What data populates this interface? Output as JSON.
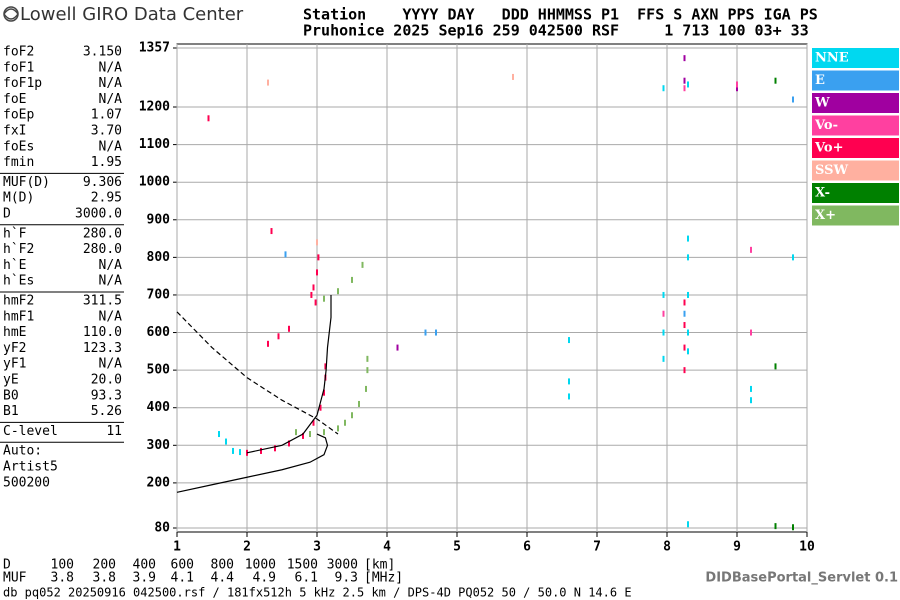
{
  "header": {
    "brand": "Lowell GIRO Data Center",
    "line1": "Station    YYYY DAY   DDD HHMMSS P1  FFS S AXN PPS IGA PS",
    "line2": "Pruhonice 2025 Sep16 259 042500 RSF     1 713 100 03+ 33"
  },
  "params": [
    [
      [
        "foF2",
        "3.150"
      ],
      [
        "foF1",
        "N/A"
      ],
      [
        "foF1p",
        "N/A"
      ],
      [
        "foE",
        "N/A"
      ],
      [
        "foEp",
        "1.07"
      ],
      [
        "fxI",
        "3.70"
      ],
      [
        "foEs",
        "N/A"
      ],
      [
        "fmin",
        "1.95"
      ]
    ],
    [
      [
        "MUF(D)",
        "9.306"
      ],
      [
        "M(D)",
        "2.95"
      ],
      [
        "D",
        "3000.0"
      ]
    ],
    [
      [
        "h`F",
        "280.0"
      ],
      [
        "h`F2",
        "280.0"
      ],
      [
        "h`E",
        "N/A"
      ],
      [
        "h`Es",
        "N/A"
      ]
    ],
    [
      [
        "hmF2",
        "311.5"
      ],
      [
        "hmF1",
        "N/A"
      ],
      [
        "hmE",
        "110.0"
      ],
      [
        "yF2",
        "123.3"
      ],
      [
        "yF1",
        "N/A"
      ],
      [
        "yE",
        "20.0"
      ],
      [
        "B0",
        "93.3"
      ],
      [
        "B1",
        "5.26"
      ]
    ],
    [
      [
        "C-level",
        "11"
      ]
    ],
    [
      [
        "Auto:",
        ""
      ],
      [
        "Artist5",
        ""
      ],
      [
        "500200",
        ""
      ]
    ]
  ],
  "muf_table": {
    "d_label": "D",
    "d_values": [
      "100",
      "200",
      "400",
      "600",
      "800",
      "1000",
      "1500",
      "3000"
    ],
    "d_unit": "[km]",
    "muf_label": "MUF",
    "muf_values": [
      "3.8",
      "3.8",
      "3.9",
      "4.1",
      "4.4",
      "4.9",
      "6.1",
      "9.3"
    ],
    "muf_unit": "[MHz]"
  },
  "footer": {
    "left": "db pq052 20250916 042500.rsf / 181fx512h 5 kHz 2.5 km / DPS-4D PQ052 50 / 50.0 N 14.6 E",
    "right": "DIDBasePortal_Servlet 0.1"
  },
  "chart_data": {
    "type": "scatter",
    "xlim": [
      1,
      10
    ],
    "ylim": [
      80,
      1357
    ],
    "xticks": [
      1,
      2,
      3,
      4,
      5,
      6,
      7,
      8,
      9,
      10
    ],
    "yticks": [
      80,
      200,
      300,
      400,
      500,
      600,
      700,
      800,
      900,
      1000,
      1100,
      1200,
      1357
    ],
    "grid": true,
    "legend": "right",
    "series": [
      {
        "name": "NNE",
        "color": "#00d8f0",
        "x": [
          1.6,
          1.7,
          1.8,
          1.9,
          6.6,
          6.6,
          6.6,
          7.95,
          7.95,
          7.95,
          8.3,
          8.3,
          8.3,
          8.3,
          8.3,
          7.95,
          8.3,
          8.3,
          9.2,
          9.2,
          9.8
        ],
        "y": [
          330,
          310,
          285,
          282,
          580,
          470,
          430,
          530,
          600,
          700,
          600,
          700,
          800,
          850,
          550,
          1250,
          1260,
          90,
          420,
          450,
          800
        ]
      },
      {
        "name": "E",
        "color": "#3aa0f0",
        "x": [
          4.55,
          4.7,
          8.25,
          9.8,
          2.55
        ],
        "y": [
          600,
          600,
          650,
          1220,
          808
        ]
      },
      {
        "name": "W",
        "color": "#a000a0",
        "x": [
          8.25,
          4.15,
          9.0,
          8.25
        ],
        "y": [
          1330,
          560,
          1250,
          1270
        ]
      },
      {
        "name": "Vo-",
        "color": "#ff40a0",
        "x": [
          7.95,
          9.2,
          9.2,
          9.0,
          8.25
        ],
        "y": [
          650,
          600,
          820,
          1260,
          1250
        ]
      },
      {
        "name": "Vo+",
        "color": "#ff0050",
        "x": [
          2.0,
          2.2,
          2.4,
          2.6,
          2.8,
          2.95,
          3.05,
          3.1,
          3.12,
          3.12,
          2.92,
          2.95,
          3.0,
          3.02,
          2.98,
          2.3,
          2.45,
          2.6,
          8.25,
          8.25,
          8.25,
          8.25,
          1.45,
          2.35
        ],
        "y": [
          280,
          285,
          292,
          305,
          325,
          360,
          400,
          440,
          480,
          510,
          700,
          720,
          760,
          800,
          680,
          570,
          590,
          610,
          500,
          560,
          620,
          680,
          1170,
          870
        ]
      },
      {
        "name": "SSW",
        "color": "#ffb0a0",
        "x": [
          5.8,
          3.0,
          2.3
        ],
        "y": [
          1280,
          840,
          1265
        ]
      },
      {
        "name": "X-",
        "color": "#008000",
        "x": [
          9.55,
          9.55,
          9.55,
          9.8
        ],
        "y": [
          1270,
          510,
          85,
          82
        ]
      },
      {
        "name": "X+",
        "color": "#80b860",
        "x": [
          2.7,
          2.9,
          3.1,
          3.3,
          3.4,
          3.5,
          3.6,
          3.7,
          3.72,
          3.72,
          3.1,
          3.3,
          3.5,
          3.65
        ],
        "y": [
          335,
          330,
          335,
          345,
          360,
          380,
          410,
          450,
          500,
          530,
          690,
          710,
          740,
          780
        ]
      }
    ],
    "curves": [
      {
        "style": "solid",
        "x": [
          2.0,
          2.5,
          2.8,
          3.0,
          3.1,
          3.13,
          3.15,
          3.2,
          3.2
        ],
        "y": [
          280,
          300,
          330,
          380,
          450,
          500,
          560,
          640,
          700
        ]
      },
      {
        "style": "solid",
        "x": [
          1.0,
          1.5,
          2.0,
          2.5,
          2.9,
          3.1,
          3.15,
          3.12,
          3.0
        ],
        "y": [
          175,
          195,
          215,
          235,
          255,
          275,
          300,
          320,
          330
        ]
      },
      {
        "style": "dashed",
        "x": [
          1.0,
          1.5,
          2.0,
          2.5,
          3.0,
          3.3
        ],
        "y": [
          655,
          560,
          480,
          420,
          370,
          330
        ]
      }
    ]
  }
}
